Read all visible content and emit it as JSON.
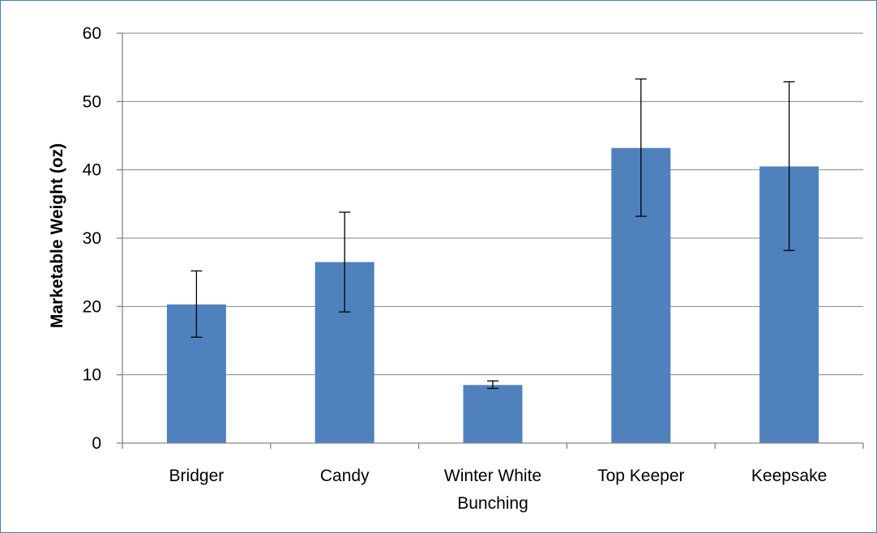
{
  "chart_data": {
    "type": "bar",
    "title": "",
    "xlabel": "",
    "ylabel": "Marketable Weight (oz)",
    "ylim": [
      0,
      60
    ],
    "yticks": [
      0,
      10,
      20,
      30,
      40,
      50,
      60
    ],
    "grid": true,
    "legend": "none",
    "bar_color": "#4f81bd",
    "categories": [
      [
        "Bridger"
      ],
      [
        "Candy"
      ],
      [
        "Winter White",
        "Bunching"
      ],
      [
        "Top Keeper"
      ],
      [
        "Keepsake"
      ]
    ],
    "values": [
      20.3,
      26.5,
      8.5,
      43.2,
      40.5
    ],
    "error_low": [
      15.5,
      19.2,
      8.0,
      33.2,
      28.2
    ],
    "error_high": [
      25.2,
      33.8,
      9.1,
      53.3,
      52.9
    ]
  }
}
